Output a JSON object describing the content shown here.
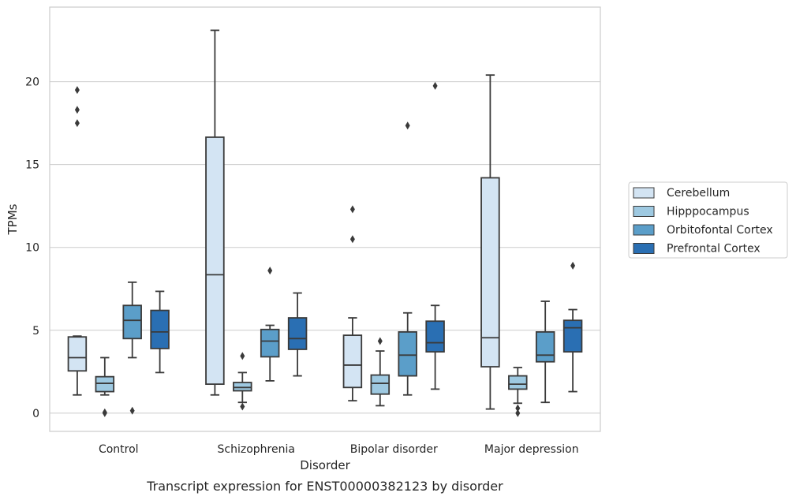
{
  "caption": "Transcript expression for ENST00000382123 by disorder",
  "chart_data": {
    "type": "boxplot",
    "xlabel": "Disorder",
    "ylabel": "TPMs",
    "ylim": [
      -1.1,
      24.5
    ],
    "yticks": [
      0,
      5,
      10,
      15,
      20
    ],
    "grid": "horizontal",
    "legend_position": "right",
    "categories": [
      "Control",
      "Schizophrenia",
      "Bipolar disorder",
      "Major depression"
    ],
    "series": [
      {
        "name": "Cerebellum",
        "color": "#d3e4f3",
        "boxes": [
          {
            "whislo": 1.1,
            "q1": 2.55,
            "med": 3.35,
            "q3": 4.6,
            "whishi": 4.65,
            "fliers": [
              17.5,
              18.3,
              19.5
            ]
          },
          {
            "whislo": 1.1,
            "q1": 1.75,
            "med": 8.35,
            "q3": 16.65,
            "whishi": 23.1,
            "fliers": []
          },
          {
            "whislo": 0.75,
            "q1": 1.55,
            "med": 2.9,
            "q3": 4.7,
            "whishi": 5.75,
            "fliers": [
              10.5,
              12.3
            ]
          },
          {
            "whislo": 0.25,
            "q1": 2.8,
            "med": 4.55,
            "q3": 14.2,
            "whishi": 20.4,
            "fliers": []
          }
        ]
      },
      {
        "name": "Hipppocampus",
        "color": "#9ec9e1",
        "boxes": [
          {
            "whislo": 1.1,
            "q1": 1.3,
            "med": 1.8,
            "q3": 2.2,
            "whishi": 3.35,
            "fliers": [
              0.0,
              0.05
            ]
          },
          {
            "whislo": 0.65,
            "q1": 1.35,
            "med": 1.55,
            "q3": 1.85,
            "whishi": 2.45,
            "fliers": [
              0.4,
              3.45
            ]
          },
          {
            "whislo": 0.45,
            "q1": 1.15,
            "med": 1.8,
            "q3": 2.3,
            "whishi": 3.75,
            "fliers": [
              4.35
            ]
          },
          {
            "whislo": 0.6,
            "q1": 1.45,
            "med": 1.75,
            "q3": 2.25,
            "whishi": 2.75,
            "fliers": [
              0.0,
              0.3
            ]
          }
        ]
      },
      {
        "name": "Orbitofontal Cortex",
        "color": "#5b9ec9",
        "boxes": [
          {
            "whislo": 3.35,
            "q1": 4.5,
            "med": 5.6,
            "q3": 6.5,
            "whishi": 7.9,
            "fliers": [
              0.15
            ]
          },
          {
            "whislo": 1.95,
            "q1": 3.4,
            "med": 4.35,
            "q3": 5.05,
            "whishi": 5.3,
            "fliers": [
              8.6
            ]
          },
          {
            "whislo": 1.1,
            "q1": 2.25,
            "med": 3.5,
            "q3": 4.9,
            "whishi": 6.05,
            "fliers": [
              17.35
            ]
          },
          {
            "whislo": 0.65,
            "q1": 3.1,
            "med": 3.5,
            "q3": 4.9,
            "whishi": 6.75,
            "fliers": []
          }
        ]
      },
      {
        "name": "Prefrontal Cortex",
        "color": "#2a6fb3",
        "boxes": [
          {
            "whislo": 2.45,
            "q1": 3.9,
            "med": 4.9,
            "q3": 6.2,
            "whishi": 7.35,
            "fliers": []
          },
          {
            "whislo": 2.25,
            "q1": 3.85,
            "med": 4.5,
            "q3": 5.75,
            "whishi": 7.25,
            "fliers": []
          },
          {
            "whislo": 1.45,
            "q1": 3.7,
            "med": 4.25,
            "q3": 5.55,
            "whishi": 6.5,
            "fliers": [
              19.75
            ]
          },
          {
            "whislo": 1.3,
            "q1": 3.7,
            "med": 5.15,
            "q3": 5.6,
            "whishi": 6.25,
            "fliers": [
              8.9
            ]
          }
        ]
      }
    ]
  }
}
